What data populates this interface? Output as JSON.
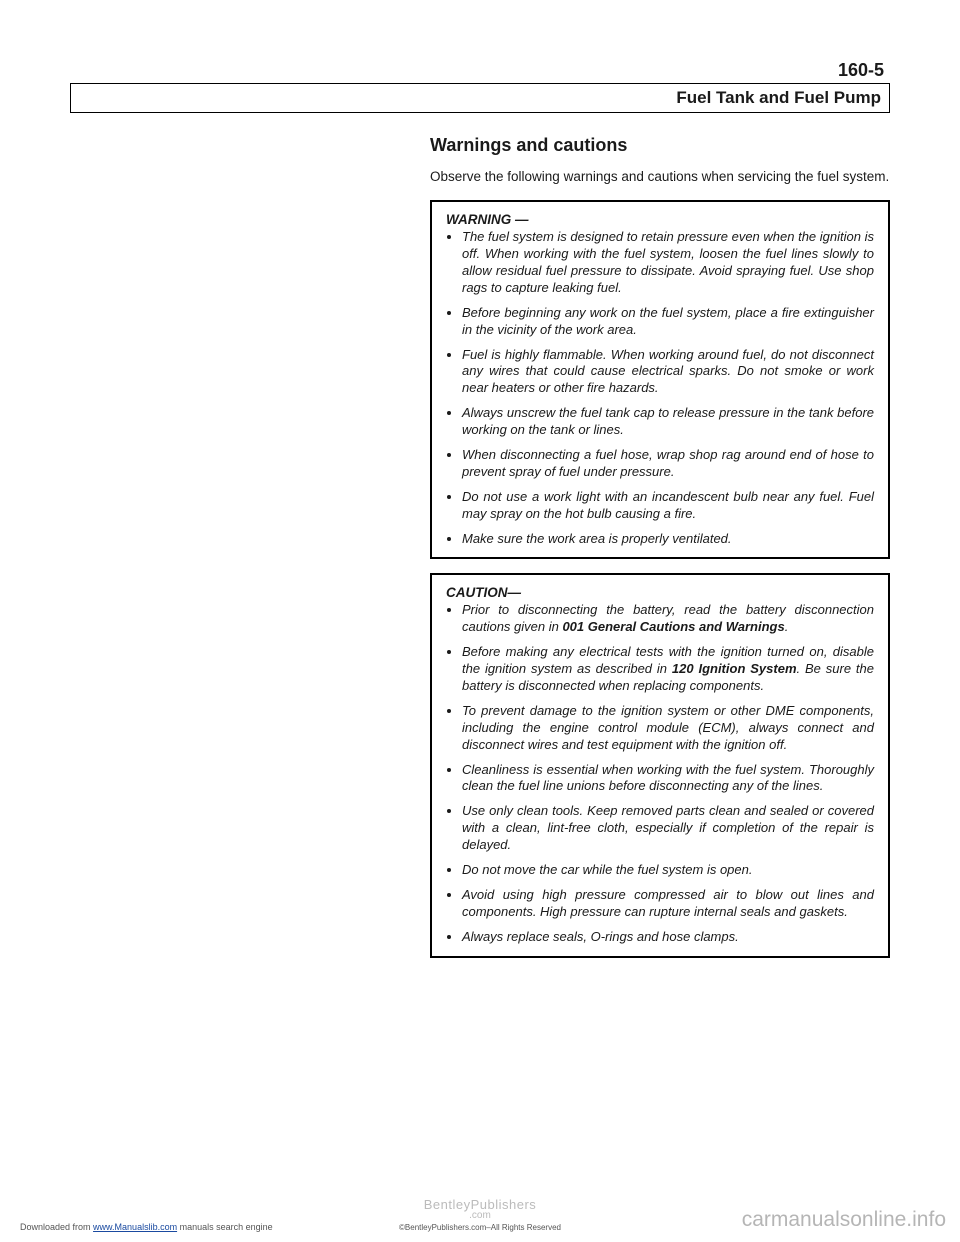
{
  "page_number": "160-5",
  "section_title": "Fuel Tank and Fuel Pump",
  "heading": "Warnings and cautions",
  "intro": "Observe the following warnings and cautions when servicing the fuel system.",
  "warning_box": {
    "title": "WARNING —",
    "items": [
      "The fuel system is designed to retain pressure even when the ignition is off. When working with the fuel system, loosen the fuel lines slowly to allow residual fuel pressure to dissipate. Avoid spraying fuel. Use shop rags to capture leaking fuel.",
      "Before beginning any work on the fuel system, place a fire extinguisher in the vicinity of the work area.",
      "Fuel is highly flammable. When working around fuel, do not disconnect any wires that could cause electrical sparks. Do not smoke or work near heaters or other fire hazards.",
      "Always unscrew the fuel tank cap to release pressure in the tank before working on the tank or lines.",
      "When disconnecting a fuel hose, wrap shop rag around end of hose to prevent spray of fuel under pressure.",
      "Do not use a work light with an incandescent bulb near any fuel. Fuel may spray on the hot bulb causing a fire.",
      "Make sure the work area is properly ventilated."
    ]
  },
  "caution_box": {
    "title": "CAUTION—",
    "items": [
      {
        "pre": "Prior to disconnecting the battery, read the battery disconnection cautions given in ",
        "bold": "001 General Cautions and Warnings",
        "post": "."
      },
      {
        "pre": "Before making any electrical tests with the ignition turned on, disable the ignition system as described in ",
        "bold": "120 Ignition System",
        "post": ". Be sure the battery is disconnected when replacing components."
      },
      {
        "text": "To prevent damage to the ignition system or other DME components, including the engine control module (ECM), always connect and disconnect wires and test equipment with the ignition off."
      },
      {
        "text": "Cleanliness is essential when working with the fuel system. Thoroughly clean the fuel line unions before disconnecting any of the lines."
      },
      {
        "text": "Use only clean tools. Keep removed parts clean and sealed or covered with a clean, lint-free cloth, especially if completion of the repair is delayed."
      },
      {
        "text": "Do not move the car while the fuel system is open."
      },
      {
        "text": "Avoid using high pressure compressed air to blow out lines and components. High pressure can rupture internal seals and gaskets."
      },
      {
        "text": "Always replace seals, O-rings and hose clamps."
      }
    ]
  },
  "footer": {
    "left_pre": "Downloaded from ",
    "left_link": "www.Manualslib.com",
    "left_post": " manuals search engine",
    "center": "BentleyPublishers",
    "center_sub": ".com",
    "copy": "©BentleyPublishers.com–All Rights Reserved"
  },
  "watermark": "carmanualsonline.info"
}
